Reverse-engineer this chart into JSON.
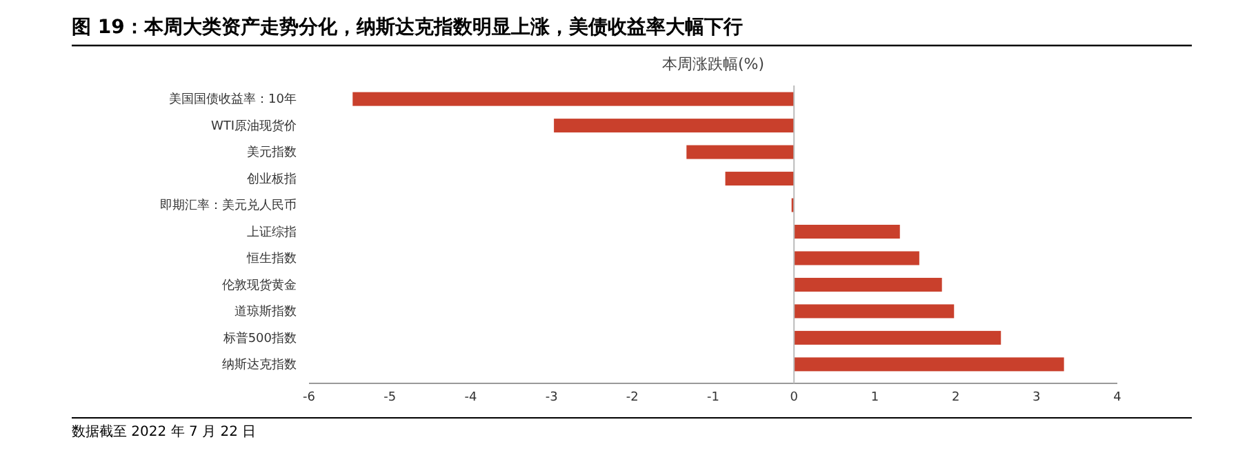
{
  "chart_data": {
    "type": "bar",
    "orientation": "horizontal",
    "title": "图 19：本周大类资产走势分化，纳斯达克指数明显上涨，美债收益率大幅下行",
    "xlabel": "本周涨跌幅(%)",
    "categories": [
      "美国国债收益率：10年",
      "WTI原油现货价",
      "美元指数",
      "创业板指",
      "即期汇率：美元兑人民币",
      "上证综指",
      "恒生指数",
      "伦敦现货黄金",
      "道琼斯指数",
      "标普500指数",
      "纳斯达克指数"
    ],
    "values": [
      -5.46,
      -2.97,
      -1.33,
      -0.85,
      -0.03,
      1.31,
      1.55,
      1.83,
      1.98,
      2.56,
      3.34
    ],
    "color": "#c9402c",
    "xlim": [
      -6,
      4
    ],
    "xticks": [
      -6,
      -5,
      -4,
      -3,
      -2,
      -1,
      0,
      1,
      2,
      3,
      4
    ],
    "annotations": [
      "数据截至 2022 年 7 月 22 日"
    ]
  }
}
